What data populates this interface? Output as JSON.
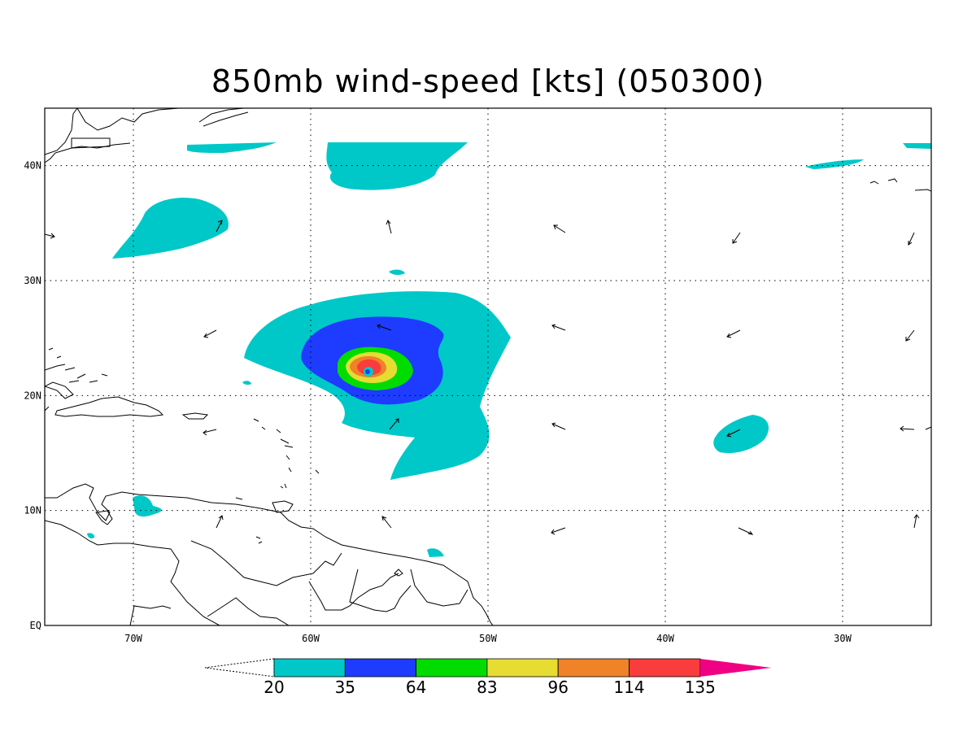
{
  "title": "850mb wind-speed [kts] (050300)",
  "map": {
    "lon_range": [
      -75,
      -25
    ],
    "lat_range": [
      0,
      45
    ],
    "lon_ticks": [
      {
        "lon": -70,
        "label": "70W"
      },
      {
        "lon": -60,
        "label": "60W"
      },
      {
        "lon": -50,
        "label": "50W"
      },
      {
        "lon": -40,
        "label": "40W"
      },
      {
        "lon": -30,
        "label": "30W"
      }
    ],
    "lat_ticks": [
      {
        "lat": 0,
        "label": "EQ"
      },
      {
        "lat": 10,
        "label": "10N"
      },
      {
        "lat": 20,
        "label": "20N"
      },
      {
        "lat": 30,
        "label": "30N"
      },
      {
        "lat": 40,
        "label": "40N"
      }
    ],
    "grid": true
  },
  "colorbar": {
    "levels": [
      "20",
      "35",
      "64",
      "83",
      "96",
      "114",
      "135"
    ],
    "colors": [
      "#00c8c8",
      "#1e3cff",
      "#00dc00",
      "#e6dc32",
      "#f08228",
      "#fa3c3c",
      "#f00082"
    ]
  }
}
